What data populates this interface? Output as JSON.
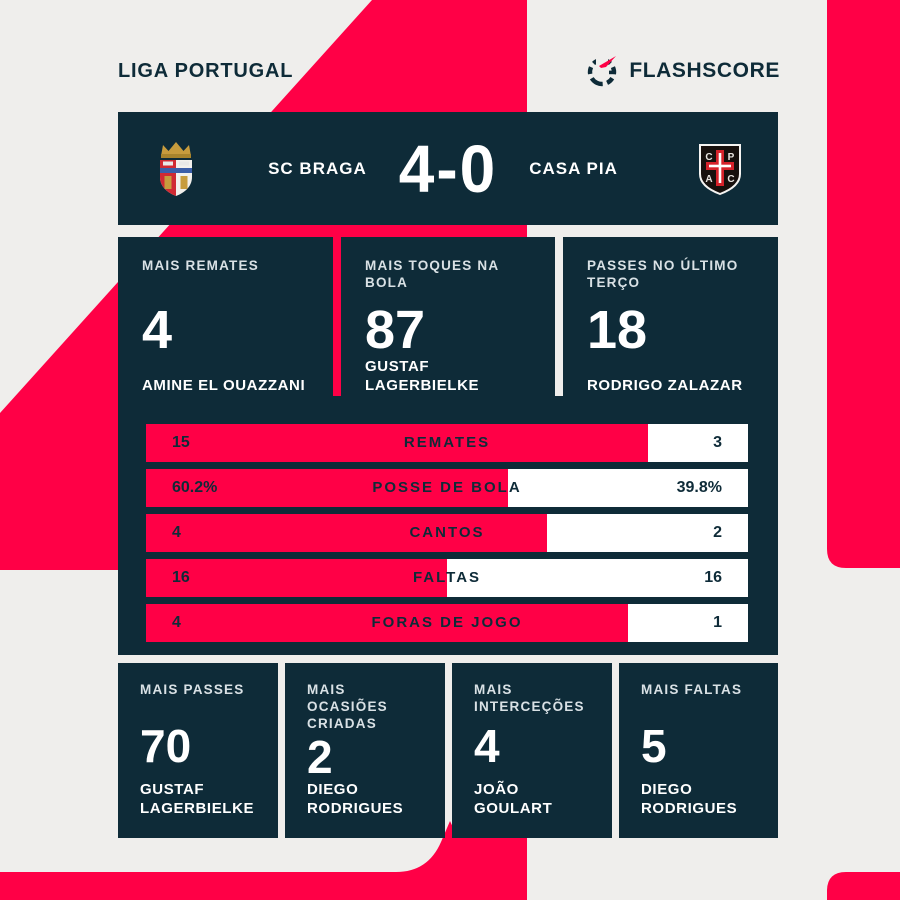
{
  "header": {
    "league": "LIGA PORTUGAL",
    "brand": "FLASHSCORE"
  },
  "scoreboard": {
    "home_team": "SC BRAGA",
    "away_team": "CASA PIA",
    "score": "4-0"
  },
  "top_stats": [
    {
      "label": "MAIS REMATES",
      "value": "4",
      "player": "AMINE EL OUAZZANI"
    },
    {
      "label": "MAIS TOQUES NA BOLA",
      "value": "87",
      "player": "GUSTAF LAGERBIELKE"
    },
    {
      "label": "PASSES NO ÚLTIMO TERÇO",
      "value": "18",
      "player": "RODRIGO ZALAZAR"
    }
  ],
  "duel": {
    "rows": [
      {
        "label": "REMATES",
        "home": "15",
        "away": "3"
      },
      {
        "label": "POSSE DE BOLA",
        "home": "60.2%",
        "away": "39.8%"
      },
      {
        "label": "CANTOS",
        "home": "4",
        "away": "2"
      },
      {
        "label": "FALTAS",
        "home": "16",
        "away": "16"
      },
      {
        "label": "FORAS DE JOGO",
        "home": "4",
        "away": "1"
      }
    ]
  },
  "bottom_stats": [
    {
      "label": "MAIS PASSES",
      "value": "70",
      "player": "GUSTAF LAGERBIELKE"
    },
    {
      "label": "MAIS OCASIÕES CRIADAS",
      "value": "2",
      "player": "DIEGO RODRIGUES"
    },
    {
      "label": "MAIS INTERCEÇÕES",
      "value": "4",
      "player": "JOÃO GOULART"
    },
    {
      "label": "MAIS FALTAS",
      "value": "5",
      "player": "DIEGO RODRIGUES"
    }
  ],
  "chart_data": {
    "type": "bar",
    "title": "SC Braga 4-0 Casa Pia — Liga Portugal match statistics",
    "categories": [
      "REMATES",
      "POSSE DE BOLA",
      "CANTOS",
      "FALTAS",
      "FORAS DE JOGO"
    ],
    "series": [
      {
        "name": "SC BRAGA",
        "values": [
          15,
          60.2,
          4,
          16,
          4
        ]
      },
      {
        "name": "CASA PIA",
        "values": [
          3,
          39.8,
          2,
          16,
          1
        ]
      }
    ],
    "value_labels_home": [
      "15",
      "60.2%",
      "4",
      "16",
      "4"
    ],
    "value_labels_away": [
      "3",
      "39.8%",
      "2",
      "16",
      "1"
    ],
    "legend_position": "none",
    "grid": false,
    "note": "each row rendered as opposed duel bar, home share = home/(home+away)"
  },
  "colors": {
    "accent": "#ff0046",
    "dark": "#0e2b38",
    "background": "#efeeec",
    "bar_background": "#ffffff",
    "braga_gold": "#c79c3d",
    "braga_red": "#d02a33",
    "casapia_red": "#d6222a"
  }
}
